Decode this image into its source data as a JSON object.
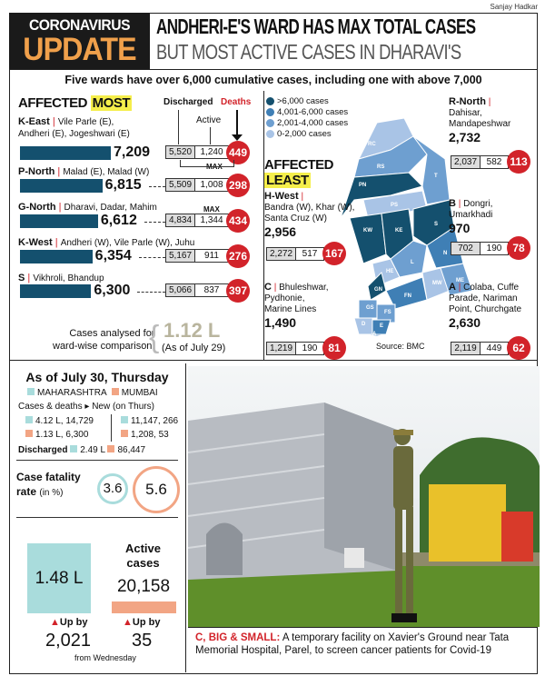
{
  "credit": "Sanjay Hadkar",
  "header": {
    "kicker_top": "CORONAVIRUS",
    "kicker_bottom": "UPDATE",
    "headline": "ANDHERI-E'S WARD HAS MAX TOTAL CASES",
    "subheadline": "BUT MOST ACTIVE CASES IN DHARAVI'S"
  },
  "subtitle": "Five wards have over 6,000 cumulative cases, including one with above 7,000",
  "most": {
    "title_a": "AFFECTED",
    "title_b": "MOST",
    "col_discharged": "Discharged",
    "col_active": "Active",
    "col_deaths": "Deaths",
    "max_label": "MAX",
    "wards": [
      {
        "ward": "K-East",
        "areas": "Vile Parle (E),",
        "areas2": "Andheri (E), Jogeshwari (E)",
        "total": "7,209",
        "value": 7209,
        "discharged": "5,520",
        "active": "1,240",
        "deaths": "449"
      },
      {
        "ward": "P-North",
        "areas": "Malad (E), Malad (W)",
        "total": "6,815",
        "value": 6815,
        "discharged": "5,509",
        "active": "1,008",
        "deaths": "298"
      },
      {
        "ward": "G-North",
        "areas": "Dharavi, Dadar, Mahim",
        "total": "6,612",
        "value": 6612,
        "discharged": "4,834",
        "active": "1,344",
        "deaths": "434"
      },
      {
        "ward": "K-West",
        "areas": "Andheri (W), Vile Parle (W), Juhu",
        "total": "6,354",
        "value": 6354,
        "discharged": "5,167",
        "active": "911",
        "deaths": "276"
      },
      {
        "ward": "S",
        "areas": "Vikhroli, Bhandup",
        "total": "6,300",
        "value": 6300,
        "discharged": "5,066",
        "active": "837",
        "deaths": "397"
      }
    ],
    "analysed_label1": "Cases analysed for",
    "analysed_label2": "ward-wise comparison:",
    "analysed_value": "1.12 L",
    "analysed_date": "(As of July 29)"
  },
  "map": {
    "legend": [
      {
        "label": ">6,000 cases",
        "color": "#14506e"
      },
      {
        "label": "4,001-6,000 cases",
        "color": "#3f7fb5"
      },
      {
        "label": "2,001-4,000 cases",
        "color": "#6e9fd0"
      },
      {
        "label": "0-2,000 cases",
        "color": "#a9c4e6"
      }
    ],
    "ward_codes": [
      "RC",
      "RS",
      "PN",
      "PS",
      "T",
      "KW",
      "KE",
      "S",
      "HE",
      "L",
      "N",
      "GN",
      "FN",
      "MW",
      "ME",
      "GS",
      "FS",
      "D",
      "E",
      "C",
      "B",
      "A"
    ],
    "source": "Source: BMC"
  },
  "least": {
    "title_a": "AFFECTED",
    "title_b": "LEAST",
    "wards": [
      {
        "ward": "H-West",
        "areas": "Bandra (W), Khar (W),",
        "areas2": "Santa Cruz (W)",
        "total": "2,956",
        "discharged": "2,272",
        "active": "517",
        "deaths": "167"
      },
      {
        "ward": "C",
        "areas": "Bhuleshwar,",
        "areas2": "Pydhonie,",
        "areas3": "Marine Lines",
        "total": "1,490",
        "discharged": "1,219",
        "active": "190",
        "deaths": "81"
      },
      {
        "ward": "R-North",
        "areas": "Dahisar,",
        "areas2": "Mandapeshwar",
        "total": "2,732",
        "discharged": "2,037",
        "active": "582",
        "deaths": "113"
      },
      {
        "ward": "B",
        "areas": "Dongri,",
        "areas2": "Umarkhadi",
        "total": "970",
        "discharged": "702",
        "active": "190",
        "deaths": "78"
      },
      {
        "ward": "A",
        "areas": "Colaba, Cuffe",
        "areas2": "Parade, Nariman",
        "areas3": "Point, Churchgate",
        "total": "2,630",
        "discharged": "2,119",
        "active": "449",
        "deaths": "62"
      }
    ]
  },
  "state": {
    "title": "As of July 30, Thursday",
    "legend_mh": "MAHARASHTRA",
    "legend_mum": "MUMBAI",
    "cases_label": "Cases & deaths",
    "new_label": "New (on Thurs)",
    "mh_cases": "4.12 L, 14,729",
    "mum_cases": "1.13 L, 6,300",
    "mh_new": "11,147, 266",
    "mum_new": "1,208, 53",
    "discharged_label": "Discharged",
    "mh_discharged": "2.49 L",
    "mum_discharged": "86,447",
    "cfr_label1": "Case fatality",
    "cfr_label2": "rate",
    "cfr_unit": "(in %)",
    "mh_cfr": "3.6",
    "mum_cfr": "5.6",
    "active_label1": "Active",
    "active_label2": "cases",
    "mh_active": "1.48 L",
    "mum_active": "20,158",
    "up_by": "Up by",
    "mh_up": "2,021",
    "mum_up": "35",
    "from": "from Wednesday"
  },
  "colors": {
    "maharashtra": "#a9dcdc",
    "mumbai": "#f2a584",
    "accent": "#d2232a",
    "bar": "#14506e",
    "update": "#f0a04b"
  },
  "caption": {
    "lead": "C, BIG & SMALL:",
    "text": " A temporary facility on Xavier's Ground near Tata Memorial Hospital, Parel, to screen cancer patients for Covid-19"
  }
}
